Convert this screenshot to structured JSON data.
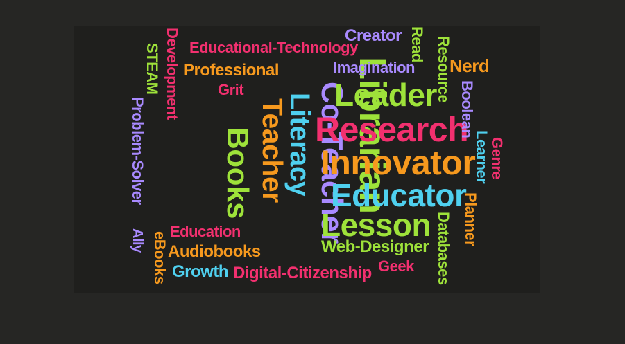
{
  "colors": {
    "background": "#262624",
    "panel": "#1f1f1d",
    "green": "#9ee23a",
    "pink": "#f2306f",
    "orange": "#f6991e",
    "purple": "#a98aff",
    "cyan": "#4fd0ef"
  },
  "words": {
    "librarian": "Librarian",
    "co_teacher": "Co-Teacher",
    "literacy": "Literacy",
    "teacher": "Teacher",
    "books": "Books",
    "leader": "Leader",
    "research": "Research",
    "innovator": "Innovator",
    "educator": "Educator",
    "lesson": "Lesson",
    "educational_technology": "Educational-Technology",
    "professional": "Professional",
    "grit": "Grit",
    "imagination": "Imagination",
    "creator": "Creator",
    "read": "Read",
    "resource": "Resource",
    "nerd": "Nerd",
    "boolean": "Boolean",
    "learner": "Learner",
    "genre": "Genre",
    "planner": "Planner",
    "databases": "Databases",
    "web_designer": "Web-Designer",
    "geek": "Geek",
    "digital_citizenship": "Digital-Citizenship",
    "growth": "Growth",
    "audiobooks": "Audiobooks",
    "education": "Education",
    "ebooks": "eBooks",
    "ally": "Ally",
    "problem_solver": "Problem-Solver",
    "steam": "STEAM",
    "development": "Development"
  }
}
